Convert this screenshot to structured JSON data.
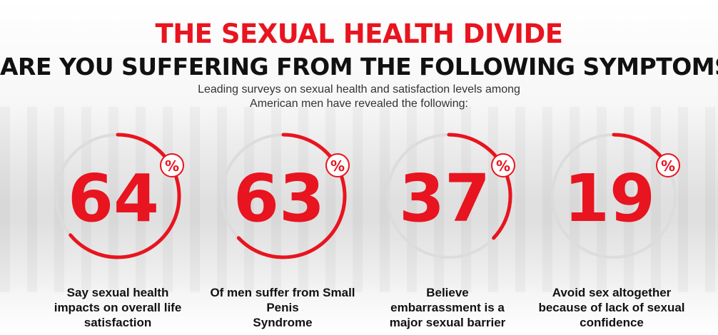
{
  "header": {
    "title": "THE SEXUAL HEALTH DIVIDE",
    "subtitle": "ARE YOU SUFFERING FROM THE FOLLOWING SYMPTOMS",
    "intro_line1": "Leading surveys on sexual health and satisfaction levels among",
    "intro_line2": "American men have revealed the following:"
  },
  "colors": {
    "accent": "#e8141f",
    "text": "#111111"
  },
  "stats": [
    {
      "value": "64",
      "percent": 64,
      "unit": "%",
      "caption_lines": [
        "Say sexual health",
        "impacts on overall life",
        "satisfaction"
      ]
    },
    {
      "value": "63",
      "percent": 63,
      "unit": "%",
      "caption_lines": [
        "Of men suffer from Small",
        "Penis",
        "Syndrome"
      ]
    },
    {
      "value": "37",
      "percent": 37,
      "unit": "%",
      "caption_lines": [
        "Believe",
        "embarrassment is a",
        "major sexual barrier"
      ]
    },
    {
      "value": "19",
      "percent": 19,
      "unit": "%",
      "caption_lines": [
        "Avoid sex altogether",
        "because of lack of sexual",
        "confidence"
      ]
    }
  ]
}
